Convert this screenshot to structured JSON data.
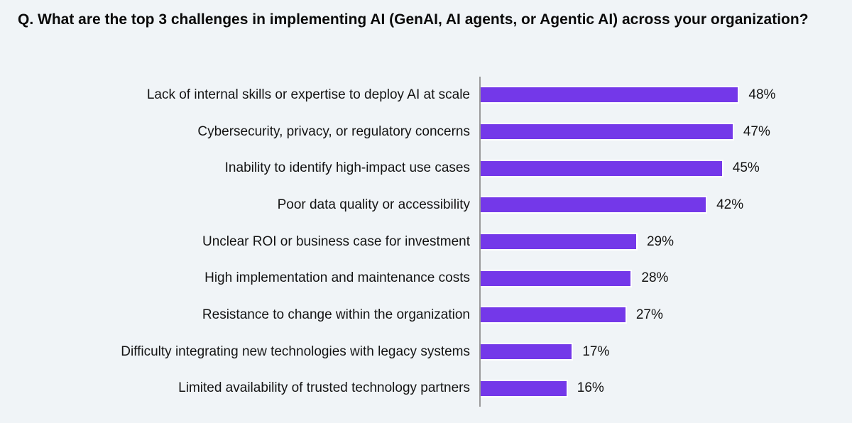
{
  "page": {
    "background": "#F0F4F7"
  },
  "title": "Q. What are the top 3 challenges in implementing AI (GenAI, AI agents, or Agentic AI) across your organization?",
  "chart_data": {
    "type": "bar",
    "orientation": "horizontal",
    "title": "Q. What are the top 3 challenges in implementing AI (GenAI, AI agents, or Agentic AI) across your organization?",
    "categories": [
      "Lack of internal skills or expertise to deploy AI at scale",
      "Cybersecurity, privacy, or regulatory concerns",
      "Inability to identify high-impact use cases",
      "Poor data quality or accessibility",
      "Unclear ROI or business case for investment",
      "High implementation and maintenance costs",
      "Resistance to change within the organization",
      "Difficulty integrating new technologies with legacy systems",
      "Limited availability of trusted technology partners"
    ],
    "values": [
      48,
      47,
      45,
      42,
      29,
      28,
      27,
      17,
      16
    ],
    "labels": [
      "48%",
      "47%",
      "45%",
      "42%",
      "29%",
      "28%",
      "27%",
      "17%",
      "16%"
    ],
    "value_suffix": "%",
    "xlabel": "",
    "ylabel": "",
    "xlim": [
      0,
      66
    ],
    "grid": false,
    "legend": false,
    "bar_color": "#7438E9",
    "axis_color": "#9a9a9a",
    "background_color": "#F0F4F7"
  }
}
